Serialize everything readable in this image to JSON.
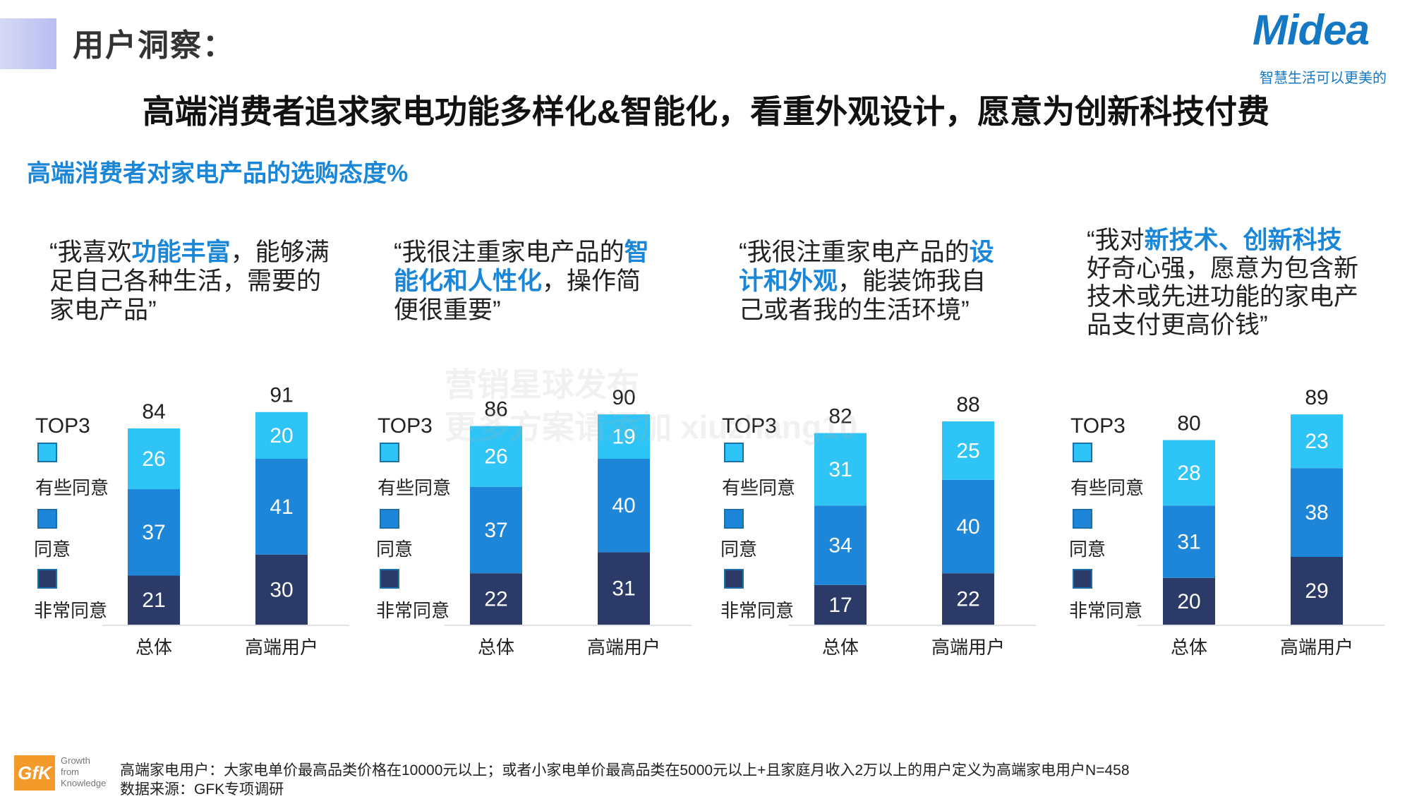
{
  "header": {
    "label": "用户洞察："
  },
  "brand": {
    "logo_text": "Midea",
    "tagline": "智慧生活可以更美的"
  },
  "headline": "高端消费者追求家电功能多样化&智能化，看重外观设计，愿意为创新科技付费",
  "section_title": "高端消费者对家电产品的选购态度%",
  "quotes": [
    {
      "pre": "“我喜欢",
      "hl": "功能丰富",
      "post": "，能够满足自己各种生活，需要的家电产品”"
    },
    {
      "pre": "“我很注重家电产品的",
      "hl": "智能化和人性化",
      "post": "，操作简便很重要”"
    },
    {
      "pre": "“我很注重家电产品的",
      "hl": "设计和外观",
      "post": "，能装饰我自己或者我的生活环境”"
    },
    {
      "pre": "“我对",
      "hl": "新技术、创新科技",
      "post": "好奇心强，愿意为包含新技术或先进功能的家电产品支付更高价钱”"
    }
  ],
  "legend": [
    {
      "label": "TOP3",
      "color": "#ffffff"
    },
    {
      "label": "有些同意",
      "color": "#2ec4f6"
    },
    {
      "label": "同意",
      "color": "#1e86d8"
    },
    {
      "label": "非常同意",
      "color": "#2b3a67"
    }
  ],
  "chart_data": [
    {
      "type": "bar",
      "stacked": true,
      "categories": [
        "总体",
        "高端用户"
      ],
      "series": [
        {
          "name": "非常同意",
          "color": "#2b3a67",
          "values": [
            21,
            30
          ]
        },
        {
          "name": "同意",
          "color": "#1e86d8",
          "values": [
            37,
            41
          ]
        },
        {
          "name": "有些同意",
          "color": "#2ec4f6",
          "values": [
            26,
            20
          ]
        }
      ],
      "totals": [
        84,
        91
      ],
      "totals_label": "TOP3"
    },
    {
      "type": "bar",
      "stacked": true,
      "categories": [
        "总体",
        "高端用户"
      ],
      "series": [
        {
          "name": "非常同意",
          "color": "#2b3a67",
          "values": [
            22,
            31
          ]
        },
        {
          "name": "同意",
          "color": "#1e86d8",
          "values": [
            37,
            40
          ]
        },
        {
          "name": "有些同意",
          "color": "#2ec4f6",
          "values": [
            26,
            19
          ]
        }
      ],
      "totals": [
        86,
        90
      ],
      "totals_label": "TOP3"
    },
    {
      "type": "bar",
      "stacked": true,
      "categories": [
        "总体",
        "高端用户"
      ],
      "series": [
        {
          "name": "非常同意",
          "color": "#2b3a67",
          "values": [
            17,
            22
          ]
        },
        {
          "name": "同意",
          "color": "#1e86d8",
          "values": [
            34,
            40
          ]
        },
        {
          "name": "有些同意",
          "color": "#2ec4f6",
          "values": [
            31,
            25
          ]
        }
      ],
      "totals": [
        82,
        88
      ],
      "totals_label": "TOP3"
    },
    {
      "type": "bar",
      "stacked": true,
      "categories": [
        "总体",
        "高端用户"
      ],
      "series": [
        {
          "name": "非常同意",
          "color": "#2b3a67",
          "values": [
            20,
            29
          ]
        },
        {
          "name": "同意",
          "color": "#1e86d8",
          "values": [
            31,
            38
          ]
        },
        {
          "name": "有些同意",
          "color": "#2ec4f6",
          "values": [
            28,
            23
          ]
        }
      ],
      "totals": [
        80,
        89
      ],
      "totals_label": "TOP3"
    }
  ],
  "footer": {
    "definition": "高端家电用户：大家电单价最高品类价格在10000元以上；或者小家电单价最高品类在5000元以上+且家庭月收入2万以上的用户定义为高端家电用户N=458",
    "source": "数据来源：GFK专项调研"
  },
  "gfk": {
    "mark": "GfK",
    "slogan": "Growth from Knowledge"
  },
  "watermark": {
    "line1": "营销星球发布",
    "line2": "更多方案请添加 xiuzhang10"
  }
}
